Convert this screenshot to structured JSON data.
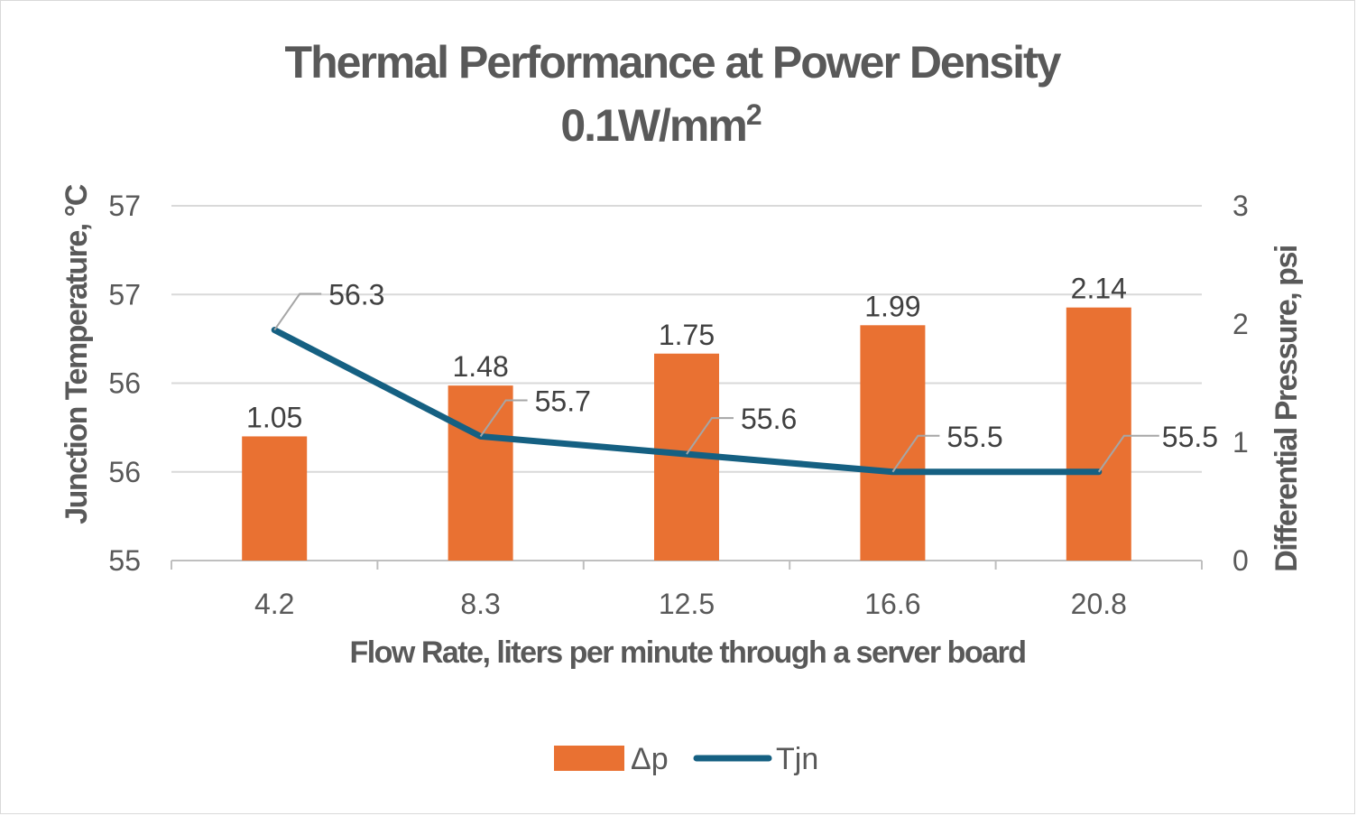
{
  "chart_data": {
    "type": "bar+line",
    "title": "Thermal Performance at Power Density",
    "subtitle_base": "0.1W/mm",
    "subtitle_sup": "2",
    "xlabel": "Flow Rate, liters per minute through a server board",
    "ylabel_left": "Junction Temperature, °C",
    "ylabel_right": "Differential Pressure, psi",
    "categories": [
      "4.2",
      "8.3",
      "12.5",
      "16.6",
      "20.8"
    ],
    "left_axis": {
      "range": [
        55,
        57
      ],
      "ticks": [
        55,
        55.5,
        56,
        56.5,
        57
      ],
      "tick_labels": [
        "55",
        "56",
        "56",
        "57",
        "57"
      ]
    },
    "right_axis": {
      "range": [
        0,
        3
      ],
      "ticks": [
        0,
        1,
        2,
        3
      ],
      "tick_labels": [
        "0",
        "1",
        "2",
        "3"
      ]
    },
    "grid": true,
    "legend_position": "bottom",
    "series": [
      {
        "name": "Δp",
        "type": "bar",
        "axis": "right",
        "color": "#E97132",
        "values": [
          1.05,
          1.48,
          1.75,
          1.99,
          2.14
        ],
        "labels": [
          "1.05",
          "1.48",
          "1.75",
          "1.99",
          "2.14"
        ]
      },
      {
        "name": "Tjn",
        "type": "line",
        "axis": "left",
        "color": "#156082",
        "values": [
          56.3,
          55.7,
          55.6,
          55.5,
          55.5
        ],
        "labels": [
          "56.3",
          "55.7",
          "55.6",
          "55.5",
          "55.5"
        ]
      }
    ]
  }
}
